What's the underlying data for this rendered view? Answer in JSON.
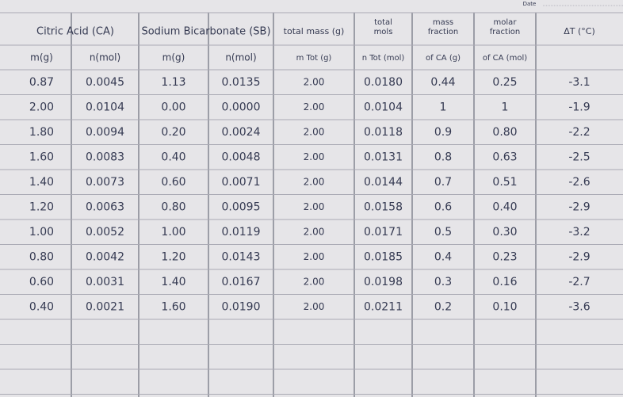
{
  "date_label": "Date",
  "headers": [
    {
      "lines": [
        "Citric Acid (CA)"
      ]
    },
    {
      "lines": [
        "Sodium Bicarbonate (SB)"
      ]
    },
    {
      "lines": [
        "total mass (g)"
      ]
    },
    {
      "lines": [
        "total",
        "mols"
      ]
    },
    {
      "lines": [
        "mass",
        "fraction"
      ]
    },
    {
      "lines": [
        "molar",
        "fraction"
      ]
    },
    {
      "lines": [
        "ΔT (°C)"
      ]
    }
  ],
  "subheaders": [
    "m(g)",
    "n(mol)",
    "m(g)",
    "n(mol)",
    "m Tot (g)",
    "n Tot (mol)",
    "of CA (g)",
    "of CA (mol)"
  ],
  "rows": [
    [
      "0.87",
      "0.0045",
      "1.13",
      "0.0135",
      "2.00",
      "0.0180",
      "0.44",
      "0.25",
      "-3.1"
    ],
    [
      "2.00",
      "0.0104",
      "0.00",
      "0.0000",
      "2.00",
      "0.0104",
      "1",
      "1",
      "-1.9"
    ],
    [
      "1.80",
      "0.0094",
      "0.20",
      "0.0024",
      "2.00",
      "0.0118",
      "0.9",
      "0.80",
      "-2.2"
    ],
    [
      "1.60",
      "0.0083",
      "0.40",
      "0.0048",
      "2.00",
      "0.0131",
      "0.8",
      "0.63",
      "-2.5"
    ],
    [
      "1.40",
      "0.0073",
      "0.60",
      "0.0071",
      "2.00",
      "0.0144",
      "0.7",
      "0.51",
      "-2.6"
    ],
    [
      "1.20",
      "0.0063",
      "0.80",
      "0.0095",
      "2.00",
      "0.0158",
      "0.6",
      "0.40",
      "-2.9"
    ],
    [
      "1.00",
      "0.0052",
      "1.00",
      "0.0119",
      "2.00",
      "0.0171",
      "0.5",
      "0.30",
      "-3.2"
    ],
    [
      "0.80",
      "0.0042",
      "1.20",
      "0.0143",
      "2.00",
      "0.0185",
      "0.4",
      "0.23",
      "-2.9"
    ],
    [
      "0.60",
      "0.0031",
      "1.40",
      "0.0167",
      "2.00",
      "0.0198",
      "0.3",
      "0.16",
      "-2.7"
    ],
    [
      "0.40",
      "0.0021",
      "1.60",
      "0.0190",
      "2.00",
      "0.0211",
      "0.2",
      "0.10",
      "-3.6"
    ]
  ]
}
